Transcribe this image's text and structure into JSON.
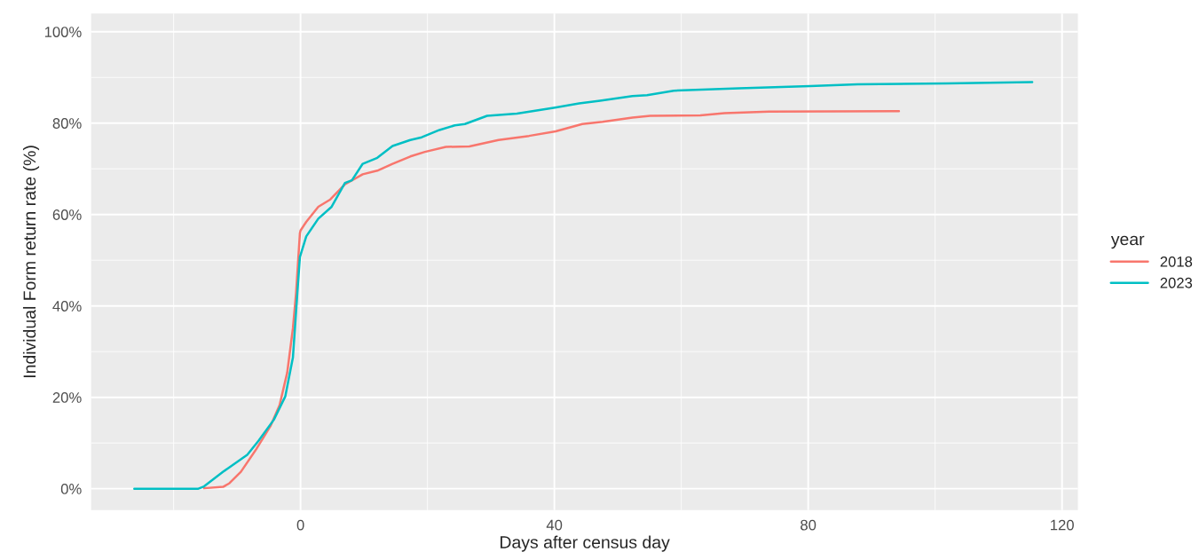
{
  "chart_data": {
    "type": "line",
    "xlabel": "Days after census day",
    "ylabel": "Individual Form return rate (%)",
    "legend_title": "year",
    "legend": "right",
    "grid": true,
    "xlim": [
      -33,
      122.5
    ],
    "ylim": [
      -4.7,
      104
    ],
    "xticks": [
      0,
      40,
      80,
      120
    ],
    "yticks": [
      {
        "value": 0,
        "label": "0%"
      },
      {
        "value": 20,
        "label": "20%"
      },
      {
        "value": 40,
        "label": "40%"
      },
      {
        "value": 60,
        "label": "60%"
      },
      {
        "value": 80,
        "label": "80%"
      },
      {
        "value": 100,
        "label": "100%"
      }
    ],
    "series": [
      {
        "name": "2018",
        "color": "#f8766d",
        "x": [
          -15.2,
          -12.2,
          -11.2,
          -9.4,
          -7.0,
          -4.7,
          -3.3,
          -2.1,
          -1.2,
          -0.7,
          -0.1,
          0.0,
          0.9,
          2.8,
          4.7,
          7.0,
          9.8,
          12.1,
          14.5,
          17.3,
          19.6,
          22.9,
          26.6,
          31.2,
          36.0,
          40.2,
          44.4,
          47.6,
          52.3,
          55.1,
          63.0,
          66.8,
          73.8,
          94.3
        ],
        "values": [
          0.1,
          0.4,
          1.2,
          3.7,
          8.6,
          13.8,
          18.3,
          25.4,
          35.1,
          42.9,
          55.9,
          56.5,
          58.4,
          61.7,
          63.3,
          66.6,
          68.8,
          69.6,
          71.1,
          72.7,
          73.7,
          74.8,
          74.9,
          76.3,
          77.2,
          78.2,
          79.8,
          80.3,
          81.2,
          81.6,
          81.7,
          82.2,
          82.5,
          82.6
        ]
      },
      {
        "name": "2023",
        "color": "#00bfc4",
        "x": [
          -26.2,
          -16.1,
          -15.2,
          -12.2,
          -8.4,
          -6.6,
          -4.2,
          -2.4,
          -1.2,
          -0.5,
          -0.1,
          0.9,
          2.8,
          4.9,
          7.0,
          8.1,
          9.8,
          12.1,
          14.5,
          17.3,
          19.1,
          21.9,
          24.3,
          25.9,
          29.4,
          34.1,
          40.1,
          43.9,
          47.2,
          52.3,
          54.6,
          58.8,
          69.1,
          80.3,
          87.8,
          101.8,
          115.3
        ],
        "values": [
          0,
          0,
          0.5,
          3.7,
          7.4,
          10.5,
          15.1,
          20.2,
          28.7,
          42.9,
          50.7,
          55.2,
          59.1,
          61.7,
          66.9,
          67.5,
          71.1,
          72.4,
          75.0,
          76.3,
          76.9,
          78.5,
          79.5,
          79.8,
          81.6,
          82.1,
          83.4,
          84.3,
          84.9,
          85.9,
          86.1,
          87.1,
          87.6,
          88.1,
          88.5,
          88.7,
          89.0
        ]
      }
    ]
  }
}
